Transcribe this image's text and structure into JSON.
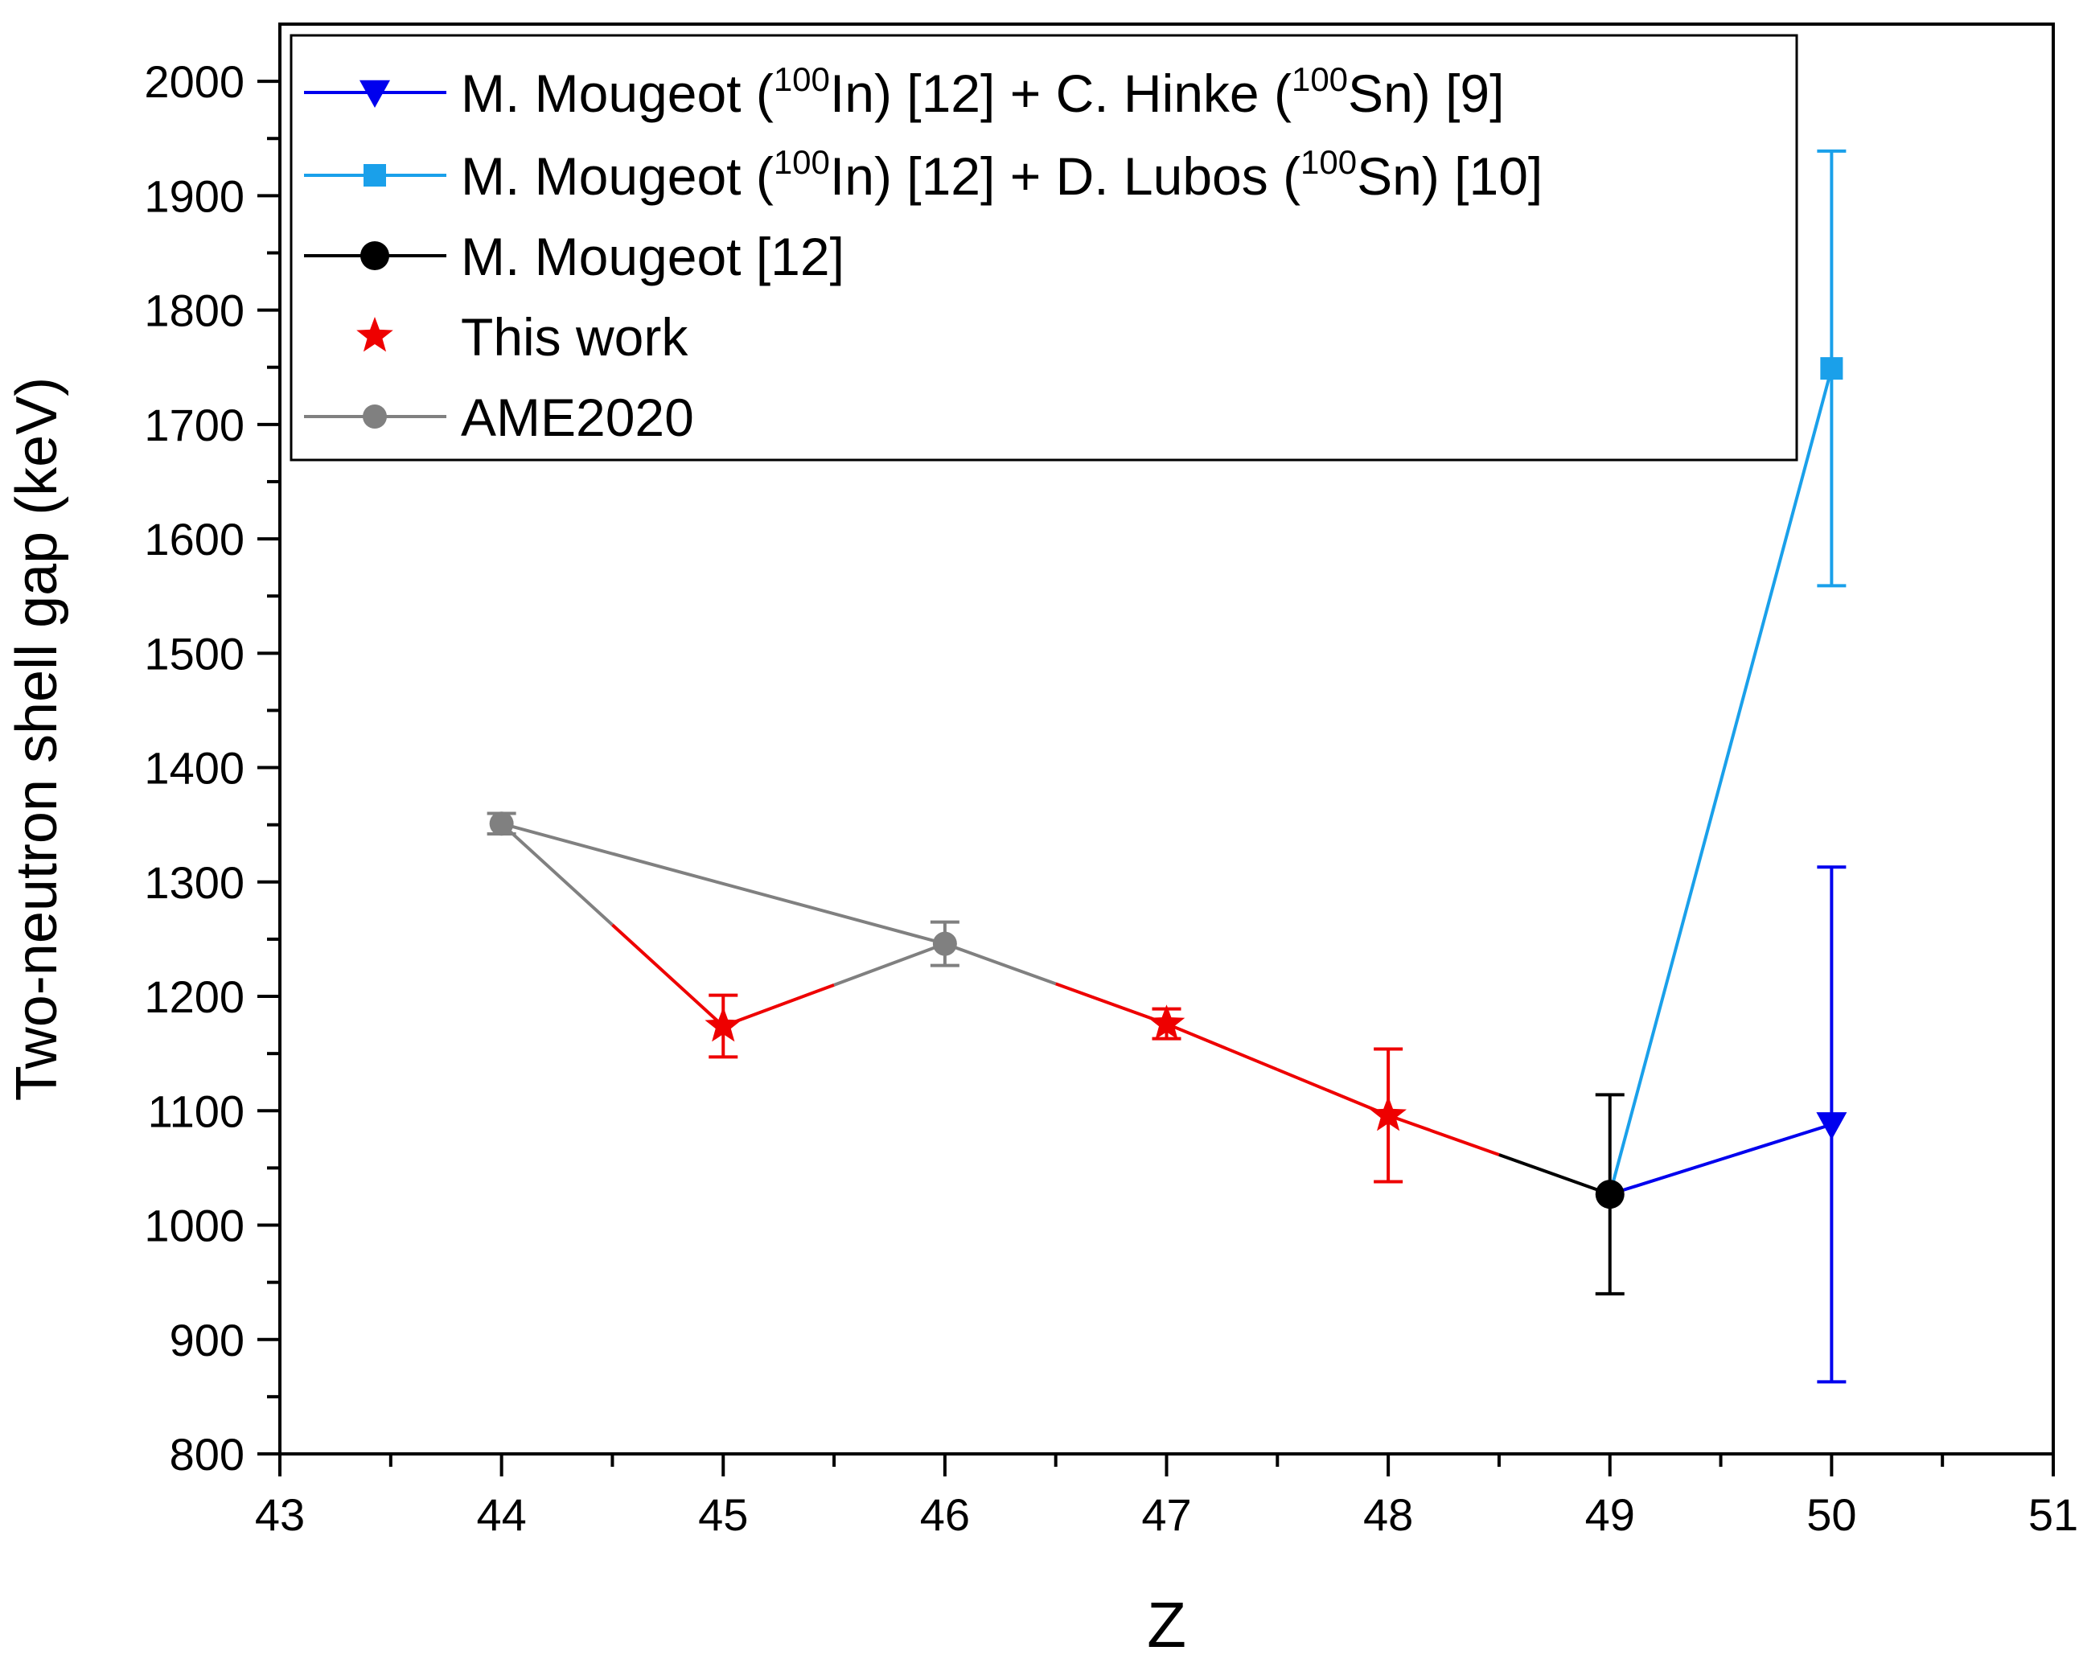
{
  "chart_data": {
    "type": "line",
    "title": "",
    "xlabel": "Z",
    "ylabel": "Two-neutron shell gap (keV)",
    "xlim": [
      43,
      51
    ],
    "ylim": [
      800,
      2050
    ],
    "xticks": [
      43,
      44,
      45,
      46,
      47,
      48,
      49,
      50,
      51
    ],
    "yticks": [
      800,
      900,
      1000,
      1100,
      1200,
      1300,
      1400,
      1500,
      1600,
      1700,
      1800,
      1900,
      2000
    ],
    "legend_position": "top-left",
    "series": [
      {
        "name": "hinke",
        "legend_parts": [
          {
            "text": "M. Mougeot ("
          },
          {
            "text": "100",
            "sup": true
          },
          {
            "text": "In) [12] + C. Hinke ("
          },
          {
            "text": "100",
            "sup": true
          },
          {
            "text": "Sn) [9]"
          }
        ],
        "color": "#0000ee",
        "marker": "triangle-down",
        "line": true,
        "x": [
          49,
          50
        ],
        "y": [
          1027,
          1088
        ],
        "err": [
          0,
          225
        ]
      },
      {
        "name": "lubos",
        "legend_parts": [
          {
            "text": "M. Mougeot  ("
          },
          {
            "text": "100",
            "sup": true
          },
          {
            "text": "In) [12] + D. Lubos ("
          },
          {
            "text": "100",
            "sup": true
          },
          {
            "text": "Sn) [10]"
          }
        ],
        "color": "#1aa0ea",
        "marker": "square",
        "line": true,
        "x": [
          49,
          50
        ],
        "y": [
          1027,
          1749
        ],
        "err": [
          0,
          190
        ]
      },
      {
        "name": "mougeot",
        "legend_parts": [
          {
            "text": "M. Mougeot [12]"
          }
        ],
        "color": "#000000",
        "marker": "circle",
        "line": true,
        "x": [
          49
        ],
        "y": [
          1027
        ],
        "err": [
          87
        ]
      },
      {
        "name": "this-work",
        "legend_parts": [
          {
            "text": "This work"
          }
        ],
        "color": "#ee0000",
        "marker": "star",
        "line": false,
        "x": [
          45,
          47,
          48
        ],
        "y": [
          1174,
          1176,
          1096
        ],
        "err": [
          27,
          13,
          58
        ]
      },
      {
        "name": "ame2020",
        "legend_parts": [
          {
            "text": "AME2020"
          }
        ],
        "color": "#808080",
        "marker": "circle-small",
        "line": true,
        "x": [
          44,
          46
        ],
        "y": [
          1351,
          1246
        ],
        "err": [
          9,
          19
        ]
      }
    ],
    "connecting_line": {
      "x": [
        44,
        45,
        46,
        47,
        48,
        49
      ],
      "y": [
        1351,
        1174,
        1246,
        1176,
        1096,
        1027
      ],
      "colors": [
        "#808080",
        "#ee0000",
        "#ee0000",
        "#808080",
        "#808080",
        "#ee0000",
        "#ee0000",
        "#ee0000",
        "#ee0000",
        "#000000"
      ]
    }
  }
}
